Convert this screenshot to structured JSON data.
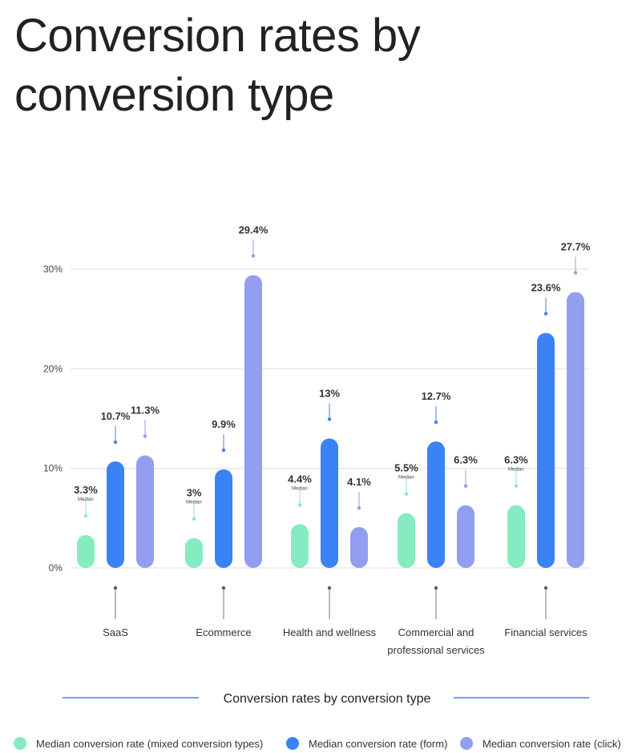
{
  "title": "Conversion rates by conversion type",
  "chart_data": {
    "type": "bar",
    "title": "Conversion rates by conversion type",
    "categories": [
      [
        "SaaS"
      ],
      [
        "Ecommerce"
      ],
      [
        "Health and wellness"
      ],
      [
        "Commercial and",
        "professional services"
      ],
      [
        "Financial services"
      ]
    ],
    "series": [
      {
        "name": "Median conversion rate (mixed conversion types)",
        "color": "#86ebc0",
        "values": [
          3.3,
          3,
          4.4,
          5.5,
          6.3
        ],
        "labels": [
          "3.3%",
          "3%",
          "4.4%",
          "5.5%",
          "6.3%"
        ],
        "sublabel": "Median"
      },
      {
        "name": "Median conversion rate (form)",
        "color": "#3b82f6",
        "values": [
          10.7,
          9.9,
          13,
          12.7,
          23.6
        ],
        "labels": [
          "10.7%",
          "9.9%",
          "13%",
          "12.7%",
          "23.6%"
        ]
      },
      {
        "name": "Median conversion rate (click)",
        "color": "#929ef0",
        "values": [
          11.3,
          29.4,
          4.1,
          6.3,
          27.7
        ],
        "labels": [
          "11.3%",
          "29.4%",
          "4.1%",
          "6.3%",
          "27.7%"
        ]
      }
    ],
    "y_ticks": [
      {
        "value": 0,
        "label": "0%"
      },
      {
        "value": 10,
        "label": "10%"
      },
      {
        "value": 20,
        "label": "20%"
      },
      {
        "value": 30,
        "label": "30%"
      }
    ],
    "ylim": [
      0,
      30
    ],
    "grid": true,
    "caption": "Conversion rates by conversion type",
    "legend_position": "bottom"
  }
}
